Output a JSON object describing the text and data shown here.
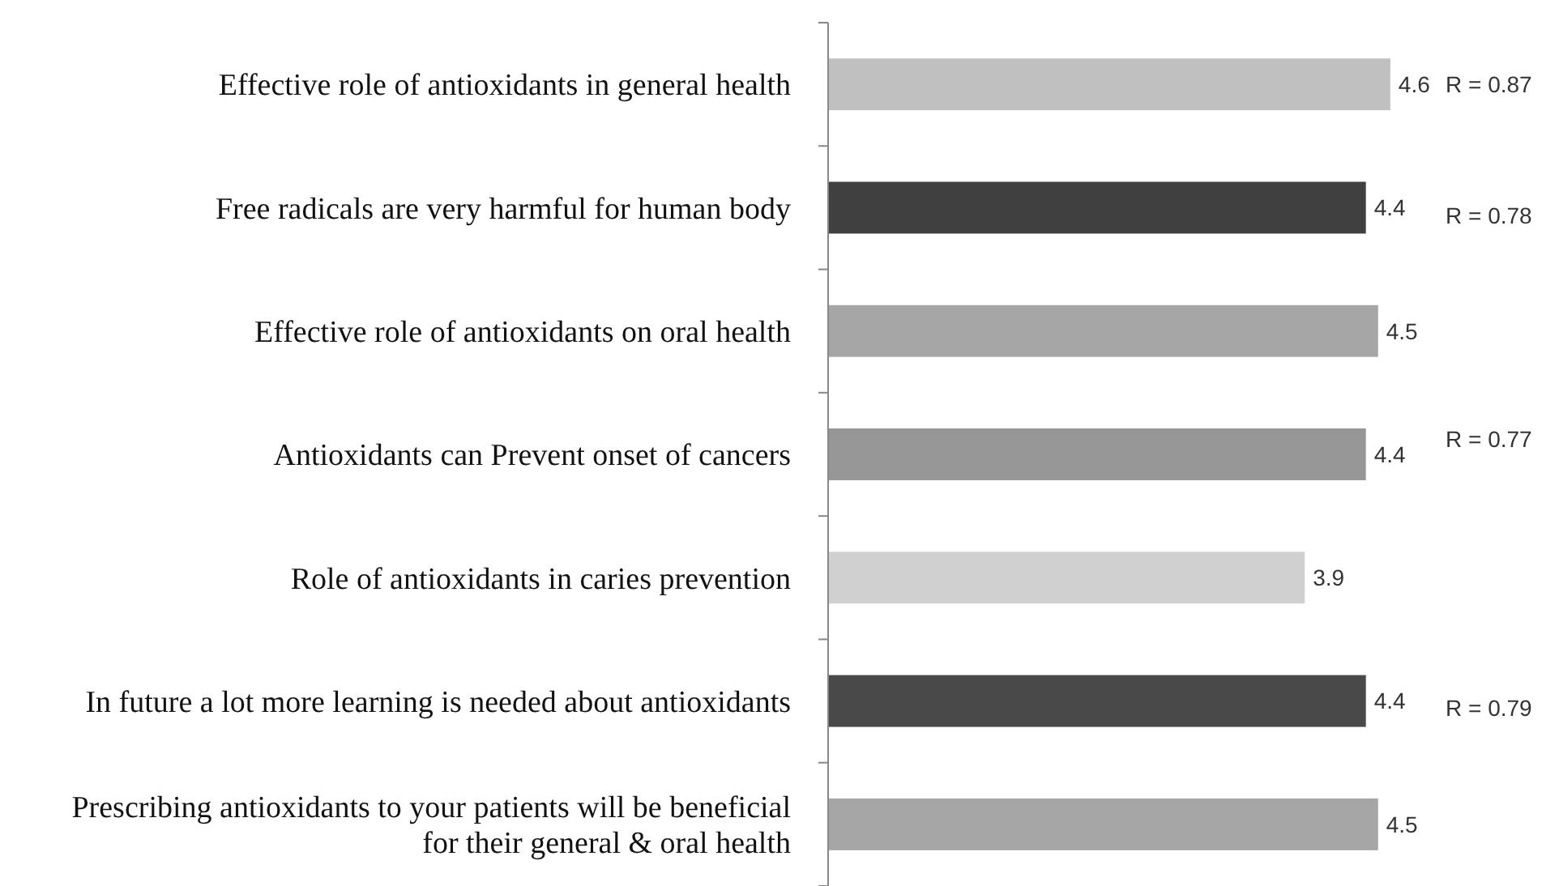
{
  "chart_data": {
    "type": "bar",
    "orientation": "horizontal",
    "categories": [
      "Effective role of antioxidants in general health",
      "Free radicals are very harmful for human body",
      "Effective role of antioxidants on oral health",
      "Antioxidants can Prevent onset of cancers",
      "Role of antioxidants in caries prevention",
      "In future a lot more learning is needed about antioxidants",
      "Prescribing antioxidants to your patients will be beneficial for their general & oral health"
    ],
    "values": [
      4.6,
      4.4,
      4.5,
      4.4,
      3.9,
      4.4,
      4.5
    ],
    "colors": [
      "#c0c0c0",
      "#404040",
      "#a6a6a6",
      "#969696",
      "#d0d0d0",
      "#494949",
      "#a6a6a6"
    ],
    "tick_labels": "y",
    "data_labels": true,
    "annotations": [
      "R = 0.87",
      "R = 0.78",
      "R = 0.77",
      "R = 0.79"
    ]
  }
}
